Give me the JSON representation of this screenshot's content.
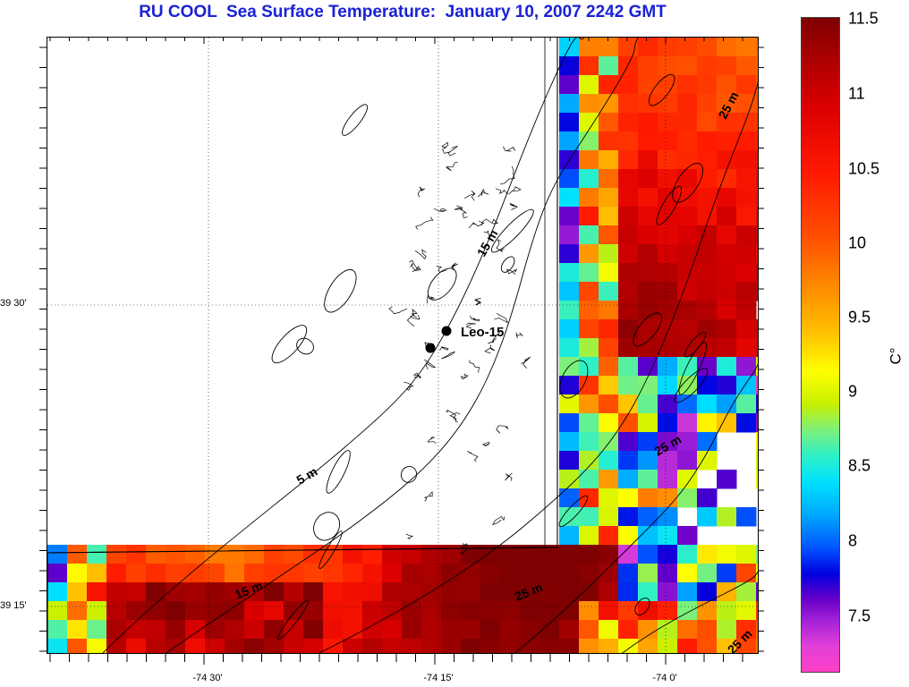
{
  "title": "RU COOL  Sea Surface Temperature:  January 10, 2007 2242 GMT",
  "map": {
    "station_label": "Leo-15",
    "depth_labels": [
      "5 m",
      "15 m",
      "15 m",
      "25 m",
      "25 m",
      "25 m",
      "25 m"
    ],
    "lat_labels": [
      "39 30'",
      "39 15'"
    ],
    "lon_labels": [
      "-74 30'",
      "-74 15'",
      "-74 0'"
    ]
  },
  "colorbar": {
    "ticks": [
      "11.5",
      "11",
      "10.5",
      "10",
      "9.5",
      "9",
      "8.5",
      "8",
      "7.5"
    ],
    "unit": "C°",
    "min": 7.1,
    "max": 11.5
  },
  "colors": {
    "title": "#1a21d6",
    "land": "#ffffff",
    "contour": "#000000"
  }
}
